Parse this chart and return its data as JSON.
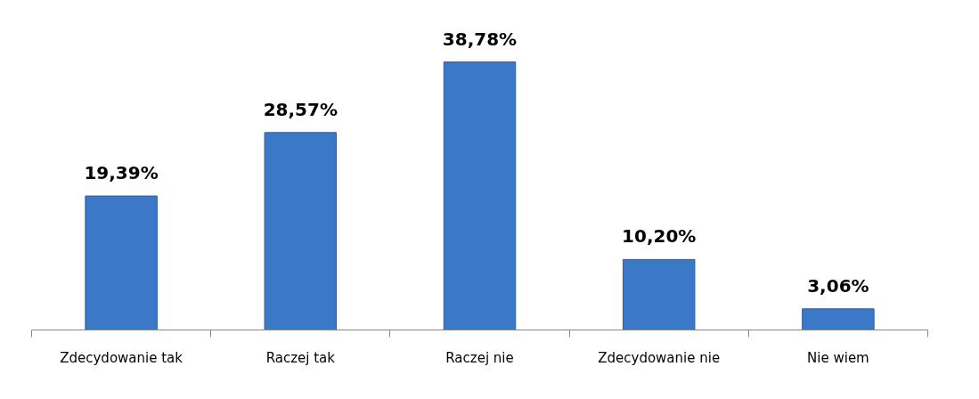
{
  "chart_data": {
    "type": "bar",
    "categories": [
      "Zdecydowanie tak",
      "Raczej tak",
      "Raczej nie",
      "Zdecydowanie nie",
      "Nie wiem"
    ],
    "values": [
      19.39,
      28.57,
      38.78,
      10.2,
      3.06
    ],
    "value_labels": [
      "19,39%",
      "28,57%",
      "38,78%",
      "10,20%",
      "3,06%"
    ],
    "color": "#3b78c8",
    "grid": false
  }
}
